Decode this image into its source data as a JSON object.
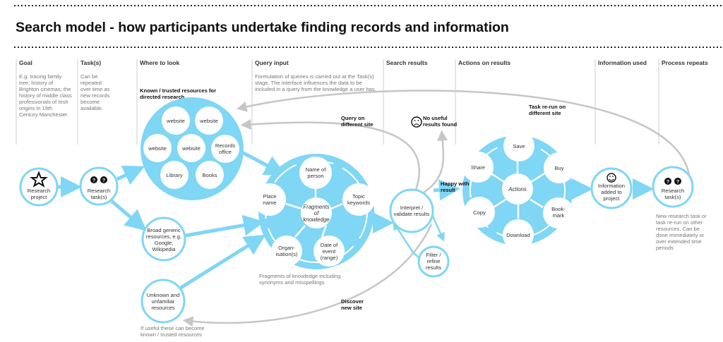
{
  "title": "Search model - how participants undertake finding records and information",
  "columns": [
    {
      "header": "Goal",
      "desc": [
        "E.g. tracing family",
        "tree; history of",
        "Brighton cinemas; the",
        "history of middle class",
        "professionals of Irish",
        "origins in 19th",
        "Century Manchester."
      ]
    },
    {
      "header": "Task(s)",
      "desc": [
        "Can be",
        "repeated",
        "over time as",
        "new records",
        "become",
        "available."
      ]
    },
    {
      "header": "Where to look",
      "desc": []
    },
    {
      "header": "Query input",
      "desc": [
        "Formulation of queries is carried out at the Task(s)",
        "stage. The interface influences the data to be",
        "included in a query from the knowledge a user has."
      ]
    },
    {
      "header": "Search results",
      "desc": []
    },
    {
      "header": "Actions on results",
      "desc": []
    },
    {
      "header": "Information used",
      "desc": []
    },
    {
      "header": "Process repeats",
      "desc": []
    }
  ],
  "nodes": {
    "research_project": [
      "Research",
      "project"
    ],
    "research_task": [
      "Research",
      "task(s)"
    ],
    "known_label": [
      "Known / trusted resources for",
      "directed research"
    ],
    "known": {
      "w1": "website",
      "w2": "website",
      "w3": "website",
      "w4": "website",
      "records": [
        "Records",
        "office"
      ],
      "library": "Library",
      "books": "Books"
    },
    "broad": [
      "Broad generic",
      "resources, e.g.",
      "Google,",
      "Wikipedia"
    ],
    "unknown": [
      "Unknown and",
      "unfamiliar",
      "resources"
    ],
    "unknown_note": [
      "If useful these can become",
      "known / trusted resources"
    ],
    "fragments": {
      "center": [
        "Fragments",
        "of",
        "knowledge"
      ],
      "name": [
        "Name of",
        "person"
      ],
      "place": [
        "Place",
        "name"
      ],
      "topic": [
        "Topic",
        "keywords"
      ],
      "org": [
        "Organ-",
        "isation(s)"
      ],
      "date": [
        "Date of",
        "event",
        "(range)"
      ]
    },
    "fragments_note": [
      "Fragments of knowledge including",
      "synonyms and misspellings"
    ],
    "interpret": [
      "Interpret /",
      "validate results"
    ],
    "filter": [
      "Filter /",
      "refine",
      "results"
    ],
    "actions": {
      "center": "Actions",
      "save": "Save",
      "share": "Share",
      "buy": "Buy",
      "copy": "Copy",
      "bookmark": [
        "Book-",
        "mark"
      ],
      "download": "Download"
    },
    "info_added": [
      "Information",
      "added to",
      "project"
    ],
    "task_end": [
      "Research",
      "task(s)"
    ],
    "task_end_note": [
      "New research task or",
      "task re-run on other",
      "resources. Can be",
      "done immediately or",
      "over extended time",
      "periods"
    ]
  },
  "annotations": {
    "query_other": [
      "Query on",
      "different site"
    ],
    "no_useful": [
      "No useful",
      "results found"
    ],
    "task_rerun": [
      "Task re-run on",
      "different site"
    ],
    "happy": [
      "Happy with",
      "result"
    ],
    "discover": [
      "Discover",
      "new site"
    ]
  },
  "icons": {
    "goal": "star-icon",
    "task": "question-icon",
    "no_results": "sad-face-icon",
    "info": "happy-face-icon"
  },
  "colors": {
    "accent": "#7fd6f5",
    "loop_arrow": "#c6c6c6"
  }
}
